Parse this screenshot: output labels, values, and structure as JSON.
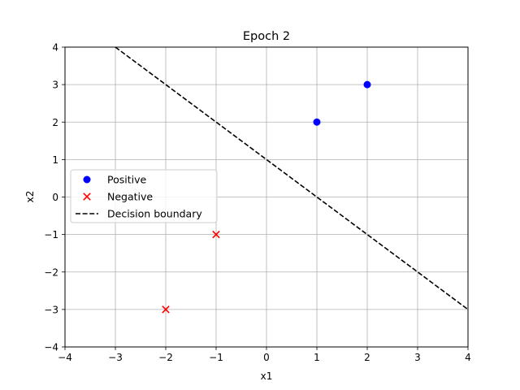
{
  "chart_data": {
    "type": "scatter",
    "title": "Epoch 2",
    "xlabel": "x1",
    "ylabel": "x2",
    "xlim": [
      -4,
      4
    ],
    "ylim": [
      -4,
      4
    ],
    "xticks": [
      -4,
      -3,
      -2,
      -1,
      0,
      1,
      2,
      3,
      4
    ],
    "yticks": [
      -4,
      -3,
      -2,
      -1,
      0,
      1,
      2,
      3,
      4
    ],
    "grid": true,
    "legend_position": "center-left",
    "series": [
      {
        "name": "Positive",
        "kind": "scatter",
        "marker": "circle",
        "color": "#0000ff",
        "points": [
          [
            1,
            2
          ],
          [
            2,
            3
          ]
        ]
      },
      {
        "name": "Negative",
        "kind": "scatter",
        "marker": "x",
        "color": "#ff0000",
        "points": [
          [
            -1,
            -1
          ],
          [
            -2,
            -3
          ]
        ]
      },
      {
        "name": "Decision boundary",
        "kind": "line",
        "style": "dashed",
        "color": "#000000",
        "points": [
          [
            -3,
            4
          ],
          [
            4,
            -3
          ]
        ]
      }
    ]
  }
}
